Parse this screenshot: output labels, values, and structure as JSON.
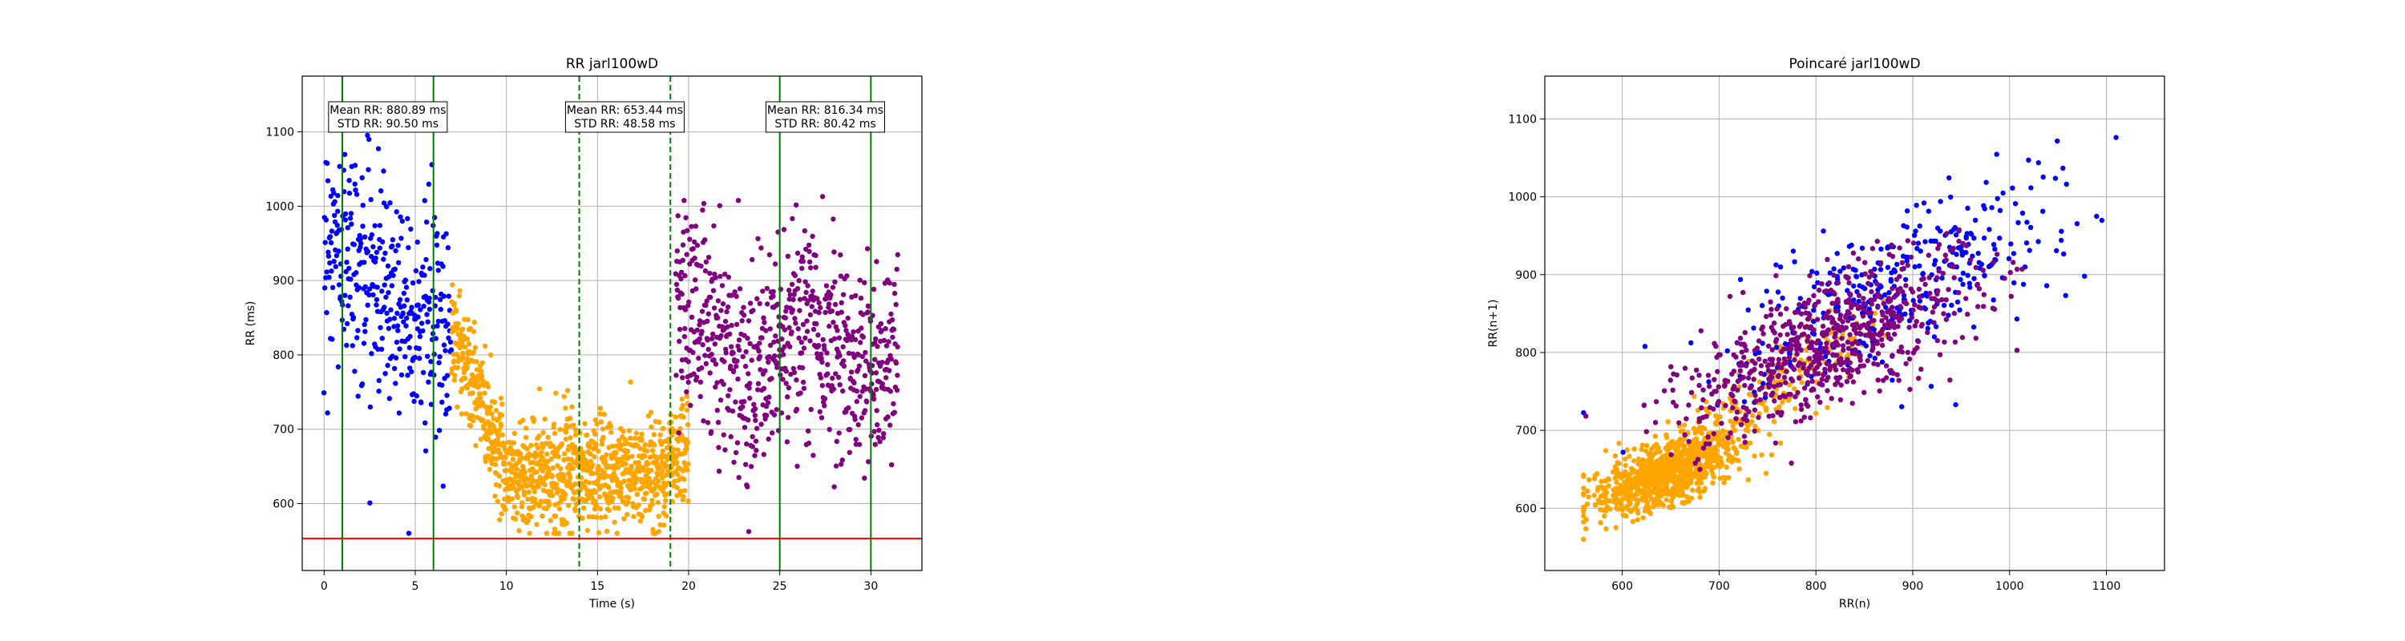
{
  "colors": {
    "segment1": "#0000ff",
    "segment2": "#ffa500",
    "segment3": "#800080",
    "window_solid": "#008000",
    "window_dashed": "#008000",
    "threshold": "#ff0000",
    "grid": "#b0b0b0"
  },
  "chart_data": [
    {
      "type": "scatter",
      "title": "RR jarl100wD",
      "xlabel": "Time (s)",
      "ylabel": "RR (ms)",
      "xlim": [
        -1.2,
        32.8
      ],
      "ylim": [
        510,
        1175
      ],
      "xticks": [
        0,
        5,
        10,
        15,
        20,
        25,
        30
      ],
      "yticks": [
        600,
        700,
        800,
        900,
        1000,
        1100
      ],
      "grid": true,
      "threshold_line": 553,
      "vertical_lines": [
        {
          "x": 1.0,
          "style": "solid"
        },
        {
          "x": 6.0,
          "style": "solid"
        },
        {
          "x": 14.0,
          "style": "dashed"
        },
        {
          "x": 19.0,
          "style": "dashed"
        },
        {
          "x": 25.0,
          "style": "solid"
        },
        {
          "x": 30.0,
          "style": "solid"
        }
      ],
      "annotations": [
        {
          "lines": [
            "Mean RR: 880.89 ms",
            "STD RR: 90.50 ms"
          ],
          "x": 3.5
        },
        {
          "lines": [
            "Mean RR: 653.44 ms",
            "STD RR: 48.58 ms"
          ],
          "x": 16.5
        },
        {
          "lines": [
            "Mean RR: 816.34 ms",
            "STD RR: 80.42 ms"
          ],
          "x": 27.5
        }
      ],
      "segments": [
        {
          "color_key": "segment1",
          "t_range": [
            0,
            7
          ],
          "mean": 880,
          "std": 90,
          "count": 360
        },
        {
          "color_key": "segment2",
          "t_range": [
            7,
            20
          ],
          "mean": 655,
          "std": 48,
          "count": 1100
        },
        {
          "color_key": "segment3",
          "t_range": [
            19.3,
            31.5
          ],
          "mean": 820,
          "std": 80,
          "count": 700
        }
      ]
    },
    {
      "type": "scatter",
      "title": "Poincaré jarl100wD",
      "xlabel": "RR(n)",
      "ylabel": "RR(n+1)",
      "xlim": [
        520,
        1160
      ],
      "ylim": [
        520,
        1155
      ],
      "xticks": [
        600,
        700,
        800,
        900,
        1000,
        1100
      ],
      "yticks": [
        600,
        700,
        800,
        900,
        1000,
        1100
      ],
      "grid": true
    }
  ]
}
